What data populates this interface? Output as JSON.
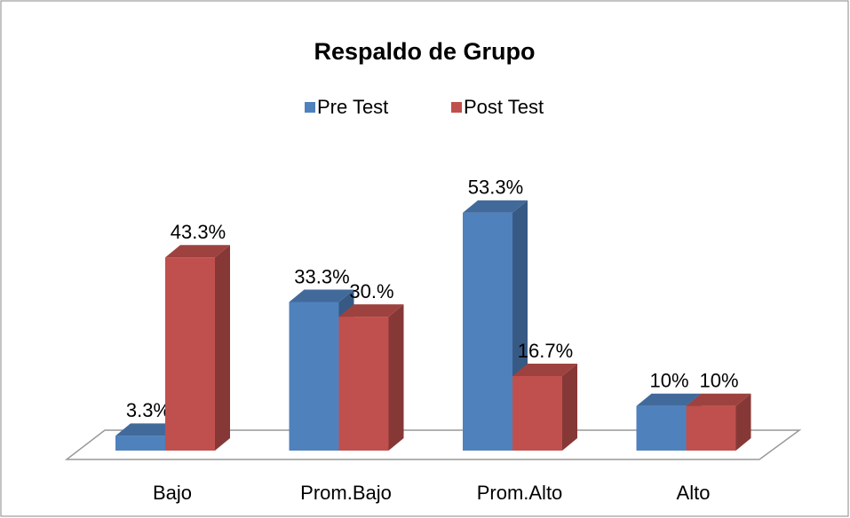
{
  "chart_data": {
    "type": "bar",
    "title": "Respaldo de Grupo",
    "categories": [
      "Bajo",
      "Prom.Bajo",
      "Prom.Alto",
      "Alto"
    ],
    "series": [
      {
        "name": "Pre Test",
        "color": "#4f81bd",
        "values": [
          3.3,
          33.3,
          53.3,
          10
        ],
        "value_labels": [
          "3.3%",
          "33.3%",
          "53.3%",
          "10%"
        ]
      },
      {
        "name": "Post Test",
        "color": "#c0504d",
        "values": [
          43.3,
          30,
          16.7,
          10
        ],
        "value_labels": [
          "43.3%",
          "30.%",
          "16.7%",
          "10%"
        ]
      }
    ],
    "legend": "top"
  }
}
